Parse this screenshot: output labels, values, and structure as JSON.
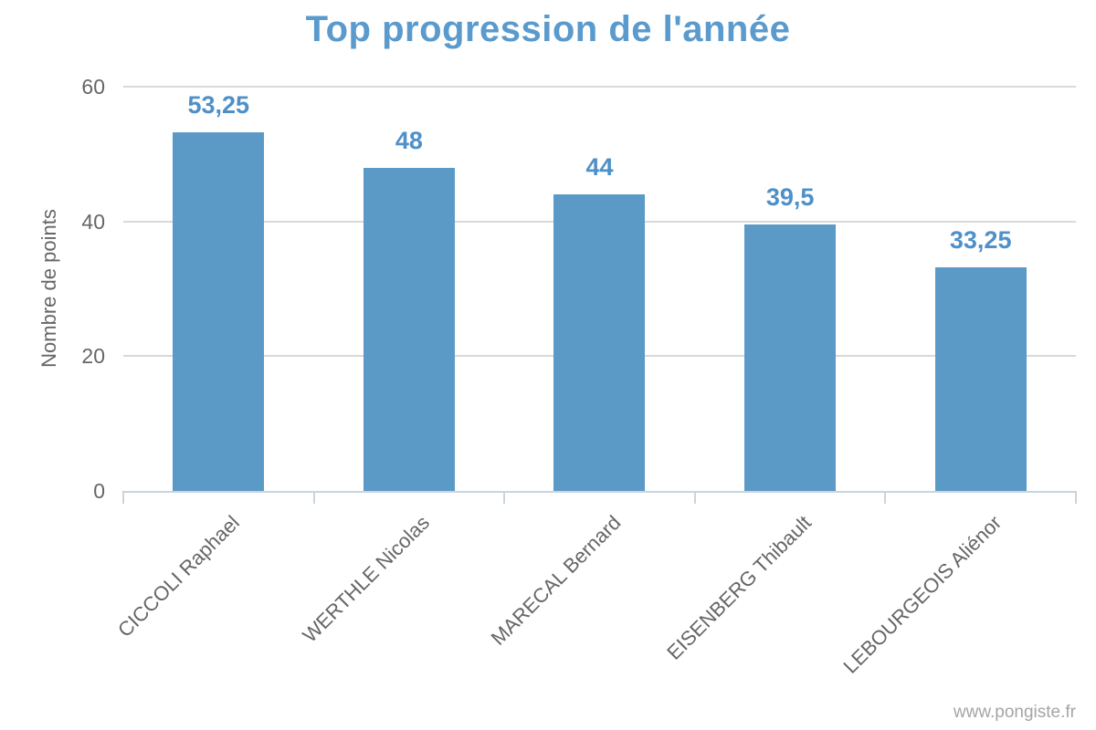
{
  "chart_data": {
    "type": "bar",
    "title": "Top progression de l'année",
    "ylabel": "Nombre de points",
    "xlabel": "",
    "categories": [
      "CICCOLI Raphael",
      "WERTHLE Nicolas",
      "MARECAL Bernard",
      "EISENBERG Thibault",
      "LEBOURGEOIS Aliénor"
    ],
    "values": [
      53.25,
      48,
      44,
      39.5,
      33.25
    ],
    "value_labels": [
      "53,25",
      "48",
      "44",
      "39,5",
      "33,25"
    ],
    "ylim": [
      0,
      60
    ],
    "yticks": [
      0,
      20,
      40,
      60
    ],
    "grid": true,
    "legend": false,
    "credits": "www.pongiste.fr",
    "colors": {
      "bar": "#5b9ac6",
      "title": "#5a9acd",
      "value_label": "#4f90c8",
      "axis_text": "#666666",
      "gridline": "#d9d9d9",
      "axis_line": "#c9d5de",
      "footer_text": "#a5a5a5"
    }
  }
}
